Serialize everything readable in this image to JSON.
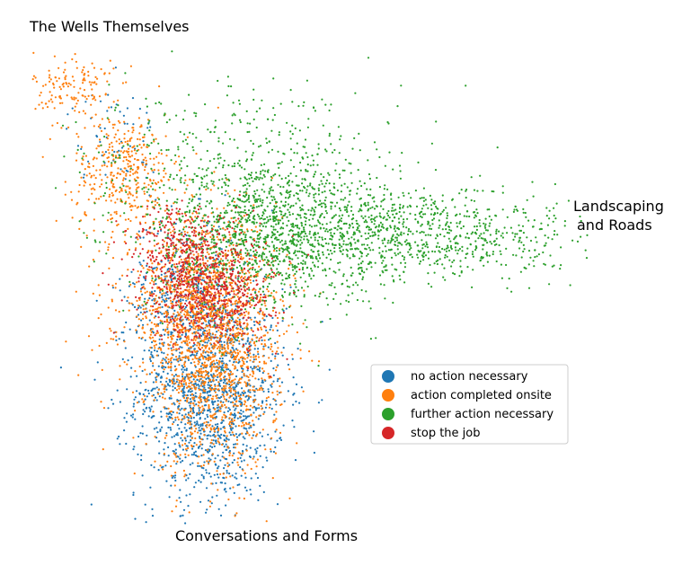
{
  "chart_data": {
    "type": "scatter",
    "title": "",
    "xlabel": "",
    "ylabel": "",
    "axes_visible": false,
    "grid": false,
    "xlim": [
      0,
      1
    ],
    "ylim": [
      0,
      1
    ],
    "corner_labels": {
      "top_left": "The Wells Themselves",
      "right": [
        "Landscaping",
        "and Roads"
      ],
      "bottom": "Conversations and Forms"
    },
    "legend": {
      "placement": "lower-right",
      "entries": [
        {
          "label": "no action necessary",
          "color": "#1f77b4"
        },
        {
          "label": "action completed onsite",
          "color": "#ff7f0e"
        },
        {
          "label": "further action necessary",
          "color": "#2ca02c"
        },
        {
          "label": "stop the job",
          "color": "#d62728"
        }
      ]
    },
    "series": [
      {
        "name": "no action necessary",
        "color": "#1f77b4",
        "clusters": [
          {
            "cx": 0.33,
            "cy": 0.27,
            "sx": 0.065,
            "sy": 0.11,
            "n": 1400
          },
          {
            "cx": 0.28,
            "cy": 0.48,
            "sx": 0.05,
            "sy": 0.08,
            "n": 350
          },
          {
            "cx": 0.16,
            "cy": 0.8,
            "sx": 0.04,
            "sy": 0.05,
            "n": 60
          }
        ]
      },
      {
        "name": "action completed onsite",
        "color": "#ff7f0e",
        "clusters": [
          {
            "cx": 0.09,
            "cy": 0.9,
            "sx": 0.035,
            "sy": 0.04,
            "n": 140
          },
          {
            "cx": 0.18,
            "cy": 0.73,
            "sx": 0.045,
            "sy": 0.06,
            "n": 380
          },
          {
            "cx": 0.31,
            "cy": 0.46,
            "sx": 0.07,
            "sy": 0.09,
            "n": 1200
          },
          {
            "cx": 0.34,
            "cy": 0.3,
            "sx": 0.055,
            "sy": 0.1,
            "n": 900
          }
        ]
      },
      {
        "name": "further action necessary",
        "color": "#2ca02c",
        "clusters": [
          {
            "cx": 0.42,
            "cy": 0.6,
            "sx": 0.1,
            "sy": 0.08,
            "n": 1300
          },
          {
            "cx": 0.66,
            "cy": 0.6,
            "sx": 0.1,
            "sy": 0.05,
            "n": 700
          },
          {
            "cx": 0.86,
            "cy": 0.59,
            "sx": 0.06,
            "sy": 0.04,
            "n": 160
          },
          {
            "cx": 0.38,
            "cy": 0.77,
            "sx": 0.14,
            "sy": 0.07,
            "n": 300
          }
        ]
      },
      {
        "name": "stop the job",
        "color": "#d62728",
        "clusters": [
          {
            "cx": 0.33,
            "cy": 0.49,
            "sx": 0.055,
            "sy": 0.06,
            "n": 700
          },
          {
            "cx": 0.27,
            "cy": 0.58,
            "sx": 0.04,
            "sy": 0.04,
            "n": 180
          }
        ]
      }
    ]
  }
}
